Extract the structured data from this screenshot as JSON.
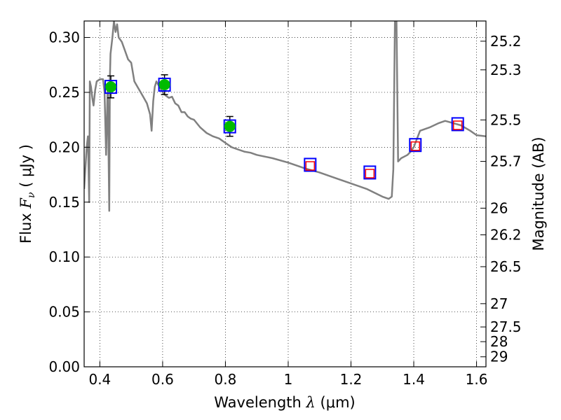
{
  "chart_data": {
    "type": "scatter",
    "title": "",
    "xlabel": "Wavelength",
    "xlabel_symbol": "λ",
    "xlabel_unit": "(μm)",
    "ylabel": "Flux",
    "ylabel_symbol": "F",
    "ylabel_subscript": "ν",
    "ylabel_unit": "( μJy )",
    "y2label": "Magnitude (AB)",
    "xlim": [
      0.35,
      1.63
    ],
    "ylim": [
      0.0,
      0.315
    ],
    "grid": true,
    "x_ticks": [
      {
        "value": 0.4,
        "label": "0.4"
      },
      {
        "value": 0.6,
        "label": "0.6"
      },
      {
        "value": 0.8,
        "label": "0.8"
      },
      {
        "value": 1.0,
        "label": "1"
      },
      {
        "value": 1.2,
        "label": "1.2"
      },
      {
        "value": 1.4,
        "label": "1.4"
      },
      {
        "value": 1.6,
        "label": "1.6"
      }
    ],
    "y_ticks": [
      {
        "value": 0.0,
        "label": "0.00"
      },
      {
        "value": 0.05,
        "label": "0.05"
      },
      {
        "value": 0.1,
        "label": "0.10"
      },
      {
        "value": 0.15,
        "label": "0.15"
      },
      {
        "value": 0.2,
        "label": "0.20"
      },
      {
        "value": 0.25,
        "label": "0.25"
      },
      {
        "value": 0.3,
        "label": "0.30"
      }
    ],
    "y2_ticks": [
      {
        "flux": 0.2966,
        "label": "25.2"
      },
      {
        "flux": 0.2705,
        "label": "25.3"
      },
      {
        "flux": 0.2249,
        "label": "25.5"
      },
      {
        "flux": 0.1871,
        "label": "25.7"
      },
      {
        "flux": 0.1445,
        "label": "26"
      },
      {
        "flux": 0.1202,
        "label": "26.2"
      },
      {
        "flux": 0.0912,
        "label": "26.5"
      },
      {
        "flux": 0.0575,
        "label": "27"
      },
      {
        "flux": 0.0363,
        "label": "27.5"
      },
      {
        "flux": 0.0229,
        "label": "28"
      },
      {
        "flux": 0.0091,
        "label": "29"
      }
    ],
    "series": [
      {
        "kind": "model_spectrum",
        "color": "#808080",
        "x": [
          0.35,
          0.358,
          0.362,
          0.366,
          0.368,
          0.372,
          0.376,
          0.38,
          0.385,
          0.39,
          0.4,
          0.41,
          0.415,
          0.42,
          0.425,
          0.43,
          0.432,
          0.434,
          0.436,
          0.44,
          0.445,
          0.45,
          0.455,
          0.46,
          0.47,
          0.48,
          0.49,
          0.5,
          0.51,
          0.52,
          0.53,
          0.54,
          0.55,
          0.56,
          0.565,
          0.57,
          0.575,
          0.58,
          0.59,
          0.6,
          0.61,
          0.62,
          0.63,
          0.64,
          0.65,
          0.66,
          0.67,
          0.68,
          0.69,
          0.7,
          0.72,
          0.74,
          0.76,
          0.78,
          0.8,
          0.82,
          0.84,
          0.86,
          0.88,
          0.9,
          0.95,
          1.0,
          1.05,
          1.1,
          1.15,
          1.2,
          1.25,
          1.3,
          1.32,
          1.33,
          1.335,
          1.34,
          1.345,
          1.35,
          1.36,
          1.38,
          1.39,
          1.4,
          1.42,
          1.45,
          1.48,
          1.5,
          1.55,
          1.58,
          1.6,
          1.63
        ],
        "y": [
          0.162,
          0.2,
          0.21,
          0.15,
          0.26,
          0.255,
          0.245,
          0.238,
          0.252,
          0.26,
          0.262,
          0.262,
          0.25,
          0.193,
          0.258,
          0.142,
          0.262,
          0.285,
          0.29,
          0.3,
          0.315,
          0.305,
          0.312,
          0.3,
          0.296,
          0.288,
          0.28,
          0.277,
          0.26,
          0.255,
          0.25,
          0.245,
          0.24,
          0.23,
          0.215,
          0.242,
          0.255,
          0.26,
          0.255,
          0.25,
          0.247,
          0.245,
          0.246,
          0.24,
          0.238,
          0.232,
          0.232,
          0.228,
          0.226,
          0.225,
          0.218,
          0.213,
          0.21,
          0.208,
          0.204,
          0.2,
          0.198,
          0.196,
          0.195,
          0.193,
          0.19,
          0.186,
          0.181,
          0.177,
          0.172,
          0.167,
          0.162,
          0.155,
          0.153,
          0.155,
          0.18,
          0.315,
          0.315,
          0.187,
          0.19,
          0.193,
          0.196,
          0.2,
          0.215,
          0.218,
          0.222,
          0.224,
          0.22,
          0.215,
          0.211,
          0.21
        ]
      },
      {
        "kind": "observed",
        "color": "#00bb00",
        "points": [
          {
            "x": 0.435,
            "y": 0.255,
            "err": 0.01
          },
          {
            "x": 0.606,
            "y": 0.257,
            "err": 0.009
          },
          {
            "x": 0.814,
            "y": 0.219,
            "err": 0.009
          }
        ]
      },
      {
        "kind": "model_photometry",
        "color": "#0000ff",
        "points": [
          {
            "x": 0.435,
            "y": 0.255
          },
          {
            "x": 0.606,
            "y": 0.257
          },
          {
            "x": 0.814,
            "y": 0.219
          },
          {
            "x": 1.07,
            "y": 0.184
          },
          {
            "x": 1.26,
            "y": 0.177
          },
          {
            "x": 1.405,
            "y": 0.202
          },
          {
            "x": 1.54,
            "y": 0.221
          }
        ]
      },
      {
        "kind": "predicted",
        "color": "#ff0000",
        "points": [
          {
            "x": 1.07,
            "y": 0.183
          },
          {
            "x": 1.26,
            "y": 0.176
          },
          {
            "x": 1.405,
            "y": 0.201
          },
          {
            "x": 1.54,
            "y": 0.22
          }
        ]
      }
    ]
  }
}
